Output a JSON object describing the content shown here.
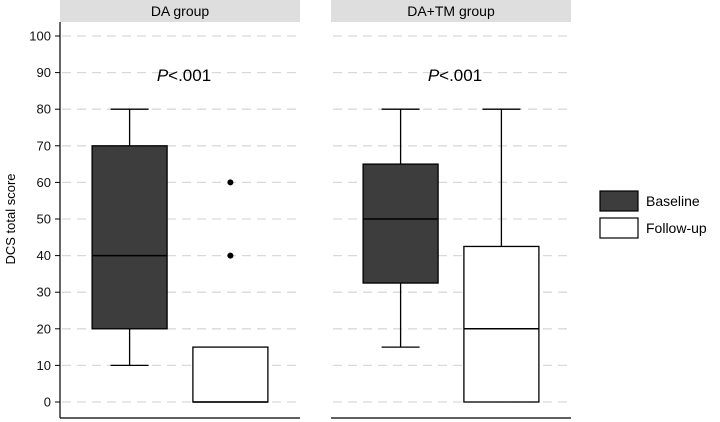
{
  "chart_data": {
    "type": "boxplot",
    "ylabel": "DCS total score",
    "xlabel": "",
    "ylim": [
      0,
      100
    ],
    "yticks": [
      0,
      10,
      20,
      30,
      40,
      50,
      60,
      70,
      80,
      90,
      100
    ],
    "grid": "horizontal dashed",
    "legend": {
      "position": "right",
      "entries": [
        {
          "name": "Baseline",
          "color": "#3d3d3d"
        },
        {
          "name": "Follow-up",
          "color": "#ffffff"
        }
      ]
    },
    "panels": [
      {
        "title": "DA group",
        "annotation": {
          "italic": "P",
          "text": "<.001"
        },
        "boxes": [
          {
            "series": "Baseline",
            "min": 10,
            "q1": 20,
            "median": 40,
            "q3": 70,
            "max": 80,
            "outliers": []
          },
          {
            "series": "Follow-up",
            "min": 0,
            "q1": 0,
            "median": 0,
            "q3": 15,
            "max": 15,
            "outliers": [
              40,
              60
            ]
          }
        ]
      },
      {
        "title": "DA+TM group",
        "annotation": {
          "italic": "P",
          "text": "<.001"
        },
        "boxes": [
          {
            "series": "Baseline",
            "min": 15,
            "q1": 32.5,
            "median": 50,
            "q3": 65,
            "max": 80,
            "outliers": []
          },
          {
            "series": "Follow-up",
            "min": 0,
            "q1": 0,
            "median": 20,
            "q3": 42.5,
            "max": 80,
            "outliers": []
          }
        ]
      }
    ]
  }
}
